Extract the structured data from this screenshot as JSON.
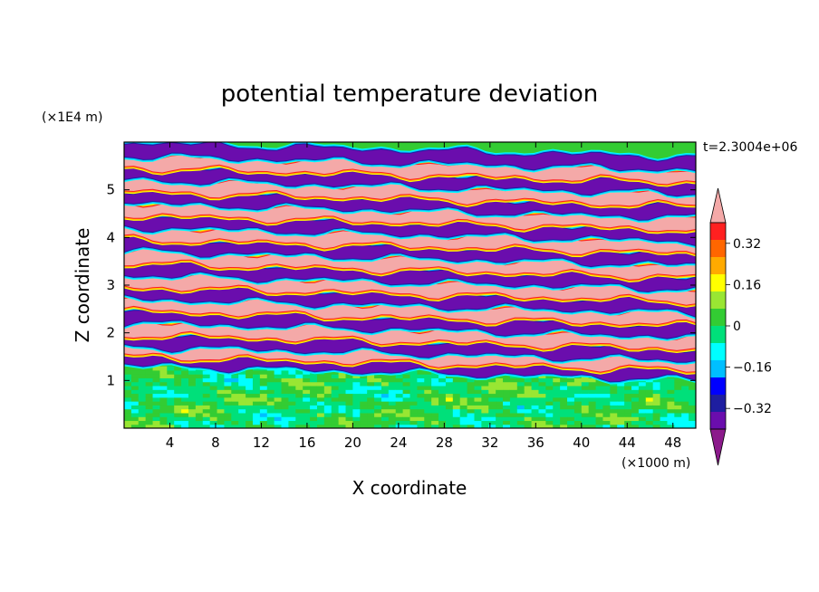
{
  "chart_data": {
    "type": "heatmap",
    "title": "potential temperature deviation",
    "xlabel": "X coordinate",
    "ylabel": "Z coordinate",
    "x_unit": "(×1000 m)",
    "y_unit": "(×1E4 m)",
    "time_label": "t=2.3004e+06",
    "xlim": [
      0,
      50
    ],
    "ylim": [
      0,
      6
    ],
    "x_ticks": [
      4,
      8,
      12,
      16,
      20,
      24,
      28,
      32,
      36,
      40,
      44,
      48
    ],
    "y_ticks": [
      1,
      2,
      3,
      4,
      5
    ],
    "colorbar": {
      "levels": [
        -0.48,
        -0.4,
        -0.32,
        -0.24,
        -0.16,
        -0.08,
        0,
        0.08,
        0.16,
        0.24,
        0.32,
        0.4,
        0.48
      ],
      "tick_labels": [
        "0.32",
        "0.16",
        "0",
        "−0.16",
        "−0.32"
      ],
      "tick_values": [
        0.32,
        0.16,
        0,
        -0.16,
        -0.32
      ],
      "colors": [
        "#8b1a8b",
        "#6a0dad",
        "#1e1ea0",
        "#0000ff",
        "#00bfff",
        "#00ffff",
        "#00e07a",
        "#33cc33",
        "#99e633",
        "#ffff00",
        "#ffaa00",
        "#ff6600",
        "#ff2020",
        "#f4a9a8"
      ],
      "extend": "both"
    },
    "field": {
      "bottom_layer": {
        "z_range": [
          0,
          1.3
        ],
        "dominant_values": [
          -0.04,
          0.04,
          0.1
        ],
        "note_levels": "mostly near zero with scattered weak positive and negative patches"
      },
      "stratified_layer": {
        "z_range": [
          1.3,
          6
        ],
        "pattern": "alternating horizontal bands of strong positive (>0.48) and strong negative (<-0.48) deviation, tilted slightly downward to the right",
        "band_centers_z": [
          1.45,
          1.65,
          1.85,
          2.1,
          2.35,
          2.6,
          2.85,
          3.1,
          3.35,
          3.6,
          3.85,
          4.1,
          4.35,
          4.6,
          4.85,
          5.1,
          5.35,
          5.6,
          5.85
        ],
        "band_signs": [
          -1,
          1,
          -1,
          1,
          -1,
          1,
          -1,
          1,
          -1,
          1,
          -1,
          1,
          -1,
          1,
          -1,
          1,
          -1,
          1,
          -1
        ]
      }
    }
  }
}
